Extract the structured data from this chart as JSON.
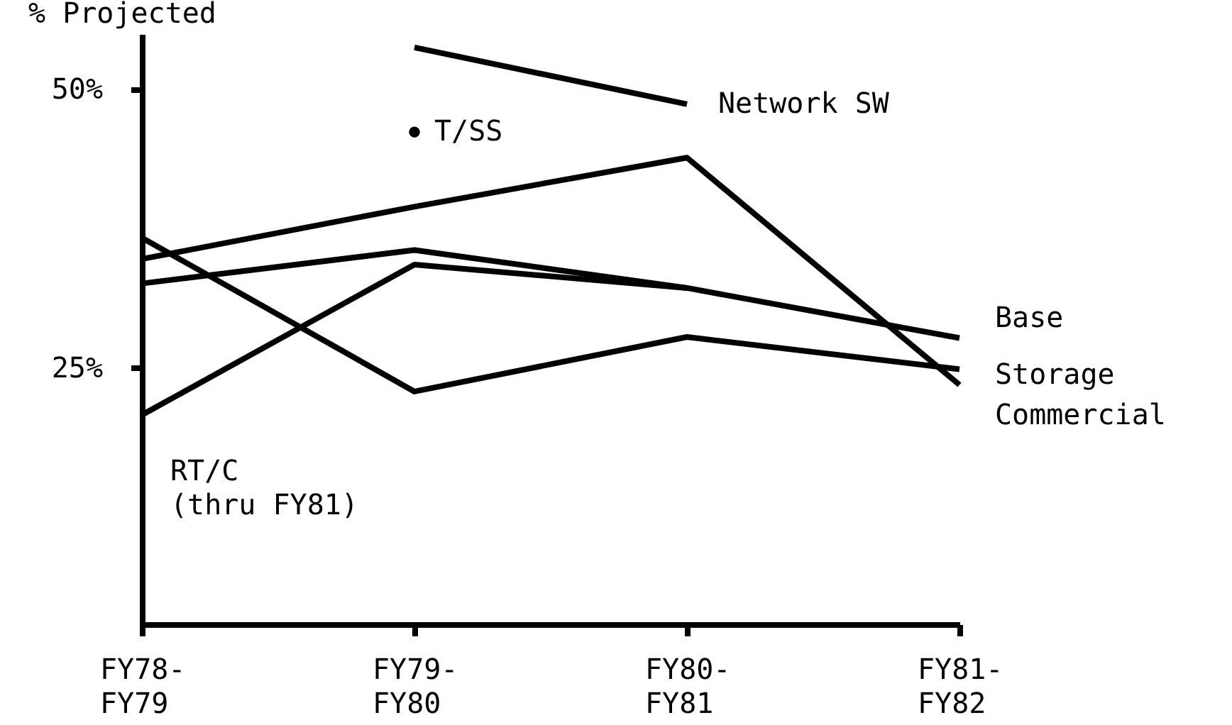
{
  "chart_data": {
    "type": "line",
    "title": "% Projected",
    "categories": [
      "FY78-\nFY79",
      "FY79-\nFY80",
      "FY80-\nFY81",
      "FY81-\nFY82"
    ],
    "ylim": [
      2,
      55
    ],
    "yticks": [
      {
        "value": 25,
        "label": "25%"
      },
      {
        "value": 50,
        "label": "50%"
      }
    ],
    "series": [
      {
        "name": "Network SW",
        "color": "#000000",
        "values": [
          null,
          53.8,
          48.7,
          null
        ]
      },
      {
        "name": "T/SS",
        "type": "scatter",
        "color": "#000000",
        "values": [
          null,
          46.2,
          null,
          null
        ]
      },
      {
        "name": "Commercial",
        "color": "#000000",
        "values": [
          34.8,
          39.5,
          43.9,
          23.5
        ]
      },
      {
        "name": "Base",
        "color": "#000000",
        "values": [
          32.6,
          35.6,
          32.2,
          27.7
        ]
      },
      {
        "name": "Storage",
        "color": "#000000",
        "values": [
          36.7,
          22.9,
          27.8,
          24.9
        ]
      },
      {
        "name": "RT/C\n(thru FY81)",
        "color": "#000000",
        "values": [
          20.8,
          34.3,
          32.2,
          null
        ]
      }
    ]
  }
}
